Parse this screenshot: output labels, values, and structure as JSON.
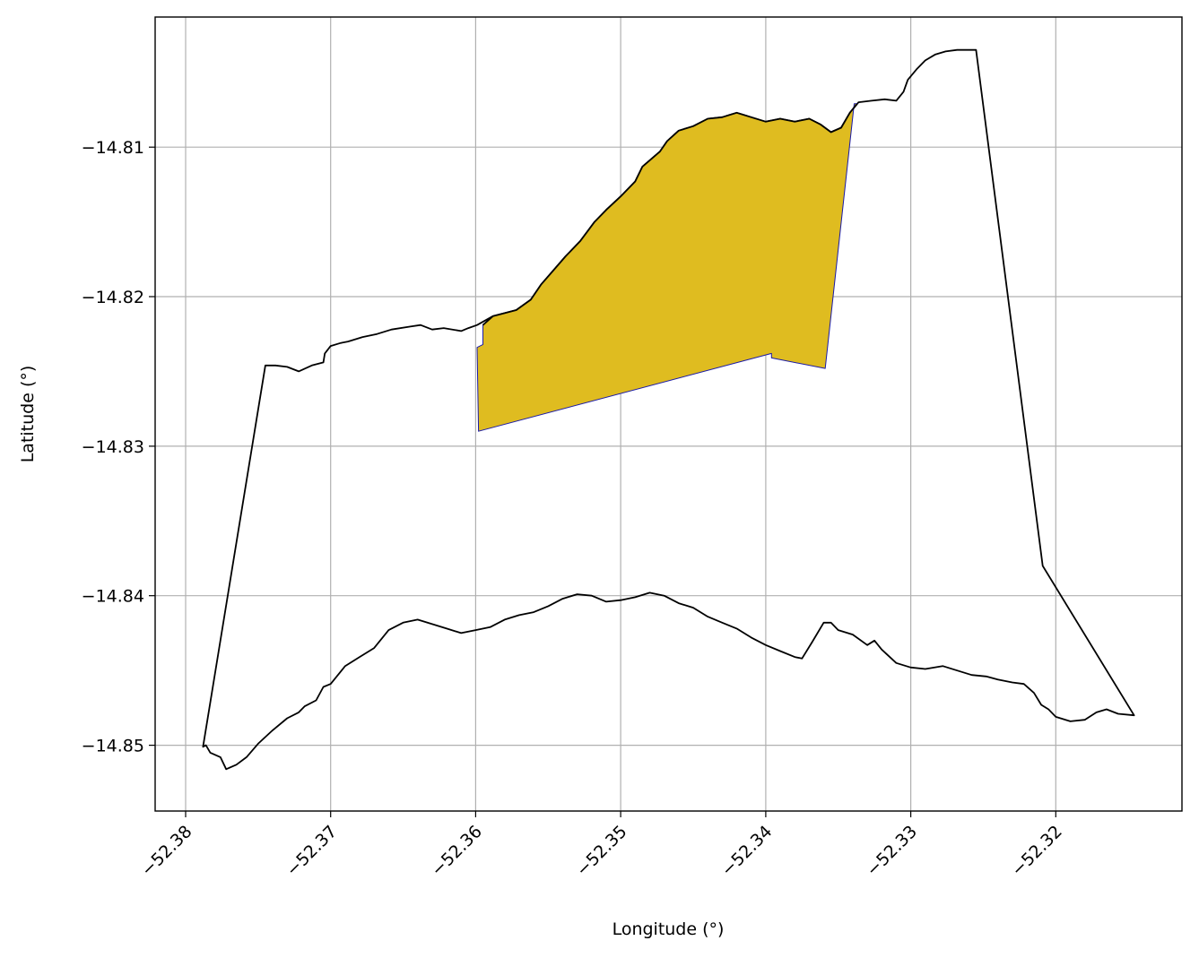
{
  "chart_data": {
    "type": "map",
    "title": "",
    "xlabel": "Longitude (°)",
    "ylabel": "Latitude (°)",
    "xlim": [
      -52.3821,
      -52.3113
    ],
    "ylim": [
      -14.8544,
      -14.8013
    ],
    "grid": true,
    "x_ticks": [
      {
        "value": -52.38,
        "label": "−52.38"
      },
      {
        "value": -52.37,
        "label": "−52.37"
      },
      {
        "value": -52.36,
        "label": "−52.36"
      },
      {
        "value": -52.35,
        "label": "−52.35"
      },
      {
        "value": -52.34,
        "label": "−52.34"
      },
      {
        "value": -52.33,
        "label": "−52.33"
      },
      {
        "value": -52.32,
        "label": "−52.32"
      }
    ],
    "y_ticks": [
      {
        "value": -14.81,
        "label": "−14.81"
      },
      {
        "value": -14.82,
        "label": "−14.82"
      },
      {
        "value": -14.83,
        "label": "−14.83"
      },
      {
        "value": -14.84,
        "label": "−14.84"
      },
      {
        "value": -14.85,
        "label": "−14.85"
      }
    ],
    "colors": {
      "boundary_stroke": "#000000",
      "region_fill": "#dfbc20",
      "region_stroke": "#1a1aa8",
      "grid": "#b0b0b0"
    },
    "boundary": [
      [
        -52.3788,
        -14.8501
      ],
      [
        -52.3745,
        -14.8246
      ],
      [
        -52.3738,
        -14.8246
      ],
      [
        -52.373,
        -14.8247
      ],
      [
        -52.3722,
        -14.825
      ],
      [
        -52.3713,
        -14.8246
      ],
      [
        -52.3705,
        -14.8244
      ],
      [
        -52.3704,
        -14.8238
      ],
      [
        -52.37,
        -14.8233
      ],
      [
        -52.3693,
        -14.8231
      ],
      [
        -52.3688,
        -14.823
      ],
      [
        -52.3678,
        -14.8227
      ],
      [
        -52.3668,
        -14.8225
      ],
      [
        -52.3658,
        -14.8222
      ],
      [
        -52.3645,
        -14.822
      ],
      [
        -52.3638,
        -14.8219
      ],
      [
        -52.363,
        -14.8222
      ],
      [
        -52.3622,
        -14.8221
      ],
      [
        -52.361,
        -14.8223
      ],
      [
        -52.3605,
        -14.8221
      ],
      [
        -52.3599,
        -14.8219
      ],
      [
        -52.3588,
        -14.8213
      ],
      [
        -52.358,
        -14.8211
      ],
      [
        -52.3572,
        -14.8209
      ],
      [
        -52.3562,
        -14.8202
      ],
      [
        -52.3555,
        -14.8192
      ],
      [
        -52.3546,
        -14.8182
      ],
      [
        -52.3538,
        -14.8173
      ],
      [
        -52.3528,
        -14.8163
      ],
      [
        -52.3518,
        -14.815
      ],
      [
        -52.351,
        -14.8142
      ],
      [
        -52.35,
        -14.8133
      ],
      [
        -52.349,
        -14.8123
      ],
      [
        -52.3485,
        -14.8113
      ],
      [
        -52.3473,
        -14.8103
      ],
      [
        -52.3468,
        -14.8096
      ],
      [
        -52.346,
        -14.8089
      ],
      [
        -52.345,
        -14.8086
      ],
      [
        -52.344,
        -14.8081
      ],
      [
        -52.343,
        -14.808
      ],
      [
        -52.342,
        -14.8077
      ],
      [
        -52.341,
        -14.808
      ],
      [
        -52.34,
        -14.8083
      ],
      [
        -52.339,
        -14.8081
      ],
      [
        -52.338,
        -14.8083
      ],
      [
        -52.337,
        -14.8081
      ],
      [
        -52.3362,
        -14.8085
      ],
      [
        -52.3355,
        -14.809
      ],
      [
        -52.3348,
        -14.8087
      ],
      [
        -52.3342,
        -14.8077
      ],
      [
        -52.3336,
        -14.807
      ],
      [
        -52.3327,
        -14.8069
      ],
      [
        -52.3318,
        -14.8068
      ],
      [
        -52.331,
        -14.8069
      ],
      [
        -52.3305,
        -14.8063
      ],
      [
        -52.3302,
        -14.8055
      ],
      [
        -52.3296,
        -14.8048
      ],
      [
        -52.329,
        -14.8042
      ],
      [
        -52.3283,
        -14.8038
      ],
      [
        -52.3276,
        -14.8036
      ],
      [
        -52.3268,
        -14.8035
      ],
      [
        -52.326,
        -14.8035
      ],
      [
        -52.3255,
        -14.8035
      ],
      [
        -52.3209,
        -14.838
      ],
      [
        -52.3146,
        -14.848
      ],
      [
        -52.3157,
        -14.8479
      ],
      [
        -52.3165,
        -14.8476
      ],
      [
        -52.3172,
        -14.8478
      ],
      [
        -52.318,
        -14.8483
      ],
      [
        -52.319,
        -14.8484
      ],
      [
        -52.32,
        -14.8481
      ],
      [
        -52.3205,
        -14.8476
      ],
      [
        -52.321,
        -14.8473
      ],
      [
        -52.3215,
        -14.8465
      ],
      [
        -52.3222,
        -14.8459
      ],
      [
        -52.323,
        -14.8458
      ],
      [
        -52.324,
        -14.8456
      ],
      [
        -52.3248,
        -14.8454
      ],
      [
        -52.3258,
        -14.8453
      ],
      [
        -52.3268,
        -14.845
      ],
      [
        -52.3278,
        -14.8447
      ],
      [
        -52.329,
        -14.8449
      ],
      [
        -52.33,
        -14.8448
      ],
      [
        -52.331,
        -14.8445
      ],
      [
        -52.332,
        -14.8436
      ],
      [
        -52.3325,
        -14.843
      ],
      [
        -52.333,
        -14.8433
      ],
      [
        -52.334,
        -14.8426
      ],
      [
        -52.335,
        -14.8423
      ],
      [
        -52.3355,
        -14.8418
      ],
      [
        -52.336,
        -14.8418
      ],
      [
        -52.3368,
        -14.8431
      ],
      [
        -52.3375,
        -14.8442
      ],
      [
        -52.338,
        -14.8441
      ],
      [
        -52.339,
        -14.8437
      ],
      [
        -52.34,
        -14.8433
      ],
      [
        -52.341,
        -14.8428
      ],
      [
        -52.342,
        -14.8422
      ],
      [
        -52.343,
        -14.8418
      ],
      [
        -52.344,
        -14.8414
      ],
      [
        -52.345,
        -14.8408
      ],
      [
        -52.346,
        -14.8405
      ],
      [
        -52.347,
        -14.84
      ],
      [
        -52.348,
        -14.8398
      ],
      [
        -52.349,
        -14.8401
      ],
      [
        -52.35,
        -14.8403
      ],
      [
        -52.351,
        -14.8404
      ],
      [
        -52.352,
        -14.84
      ],
      [
        -52.353,
        -14.8399
      ],
      [
        -52.354,
        -14.8402
      ],
      [
        -52.355,
        -14.8407
      ],
      [
        -52.356,
        -14.8411
      ],
      [
        -52.357,
        -14.8413
      ],
      [
        -52.358,
        -14.8416
      ],
      [
        -52.359,
        -14.8421
      ],
      [
        -52.36,
        -14.8423
      ],
      [
        -52.361,
        -14.8425
      ],
      [
        -52.362,
        -14.8422
      ],
      [
        -52.363,
        -14.8419
      ],
      [
        -52.364,
        -14.8416
      ],
      [
        -52.365,
        -14.8418
      ],
      [
        -52.366,
        -14.8423
      ],
      [
        -52.367,
        -14.8435
      ],
      [
        -52.368,
        -14.8441
      ],
      [
        -52.369,
        -14.8447
      ],
      [
        -52.37,
        -14.8459
      ],
      [
        -52.3705,
        -14.8461
      ],
      [
        -52.371,
        -14.847
      ],
      [
        -52.3718,
        -14.8474
      ],
      [
        -52.3722,
        -14.8478
      ],
      [
        -52.373,
        -14.8482
      ],
      [
        -52.374,
        -14.849
      ],
      [
        -52.375,
        -14.8499
      ],
      [
        -52.3758,
        -14.8508
      ],
      [
        -52.3765,
        -14.8513
      ],
      [
        -52.3772,
        -14.8516
      ],
      [
        -52.3776,
        -14.8508
      ],
      [
        -52.3783,
        -14.8505
      ],
      [
        -52.3786,
        -14.85
      ],
      [
        -52.3788,
        -14.8501
      ]
    ],
    "region": [
      [
        -52.3599,
        -14.8234
      ],
      [
        -52.3595,
        -14.8232
      ],
      [
        -52.3595,
        -14.8219
      ],
      [
        -52.3588,
        -14.8213
      ],
      [
        -52.358,
        -14.8211
      ],
      [
        -52.3572,
        -14.8209
      ],
      [
        -52.3562,
        -14.8202
      ],
      [
        -52.3555,
        -14.8192
      ],
      [
        -52.3546,
        -14.8182
      ],
      [
        -52.3538,
        -14.8173
      ],
      [
        -52.3528,
        -14.8163
      ],
      [
        -52.3518,
        -14.815
      ],
      [
        -52.351,
        -14.8142
      ],
      [
        -52.35,
        -14.8133
      ],
      [
        -52.349,
        -14.8123
      ],
      [
        -52.3485,
        -14.8113
      ],
      [
        -52.3473,
        -14.8103
      ],
      [
        -52.3468,
        -14.8096
      ],
      [
        -52.346,
        -14.8089
      ],
      [
        -52.345,
        -14.8086
      ],
      [
        -52.344,
        -14.8081
      ],
      [
        -52.343,
        -14.808
      ],
      [
        -52.342,
        -14.8077
      ],
      [
        -52.341,
        -14.808
      ],
      [
        -52.34,
        -14.8083
      ],
      [
        -52.339,
        -14.8081
      ],
      [
        -52.338,
        -14.8083
      ],
      [
        -52.337,
        -14.8081
      ],
      [
        -52.3362,
        -14.8085
      ],
      [
        -52.3355,
        -14.809
      ],
      [
        -52.3348,
        -14.8087
      ],
      [
        -52.3342,
        -14.8077
      ],
      [
        -52.3337,
        -14.8071
      ],
      [
        -52.3339,
        -14.8071
      ],
      [
        -52.3359,
        -14.8248
      ],
      [
        -52.3396,
        -14.8241
      ],
      [
        -52.3396,
        -14.8238
      ],
      [
        -52.3598,
        -14.829
      ],
      [
        -52.3599,
        -14.8234
      ]
    ]
  }
}
